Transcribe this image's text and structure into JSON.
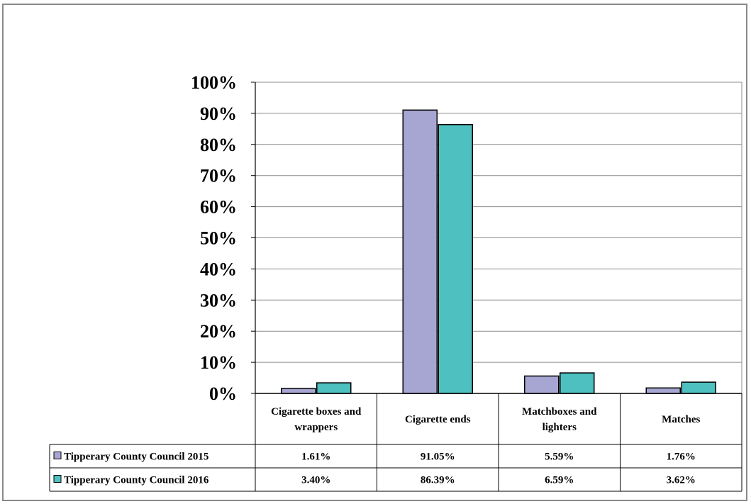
{
  "chart_data": {
    "type": "bar",
    "title": "",
    "xlabel": "",
    "ylabel": "",
    "ylim": [
      0,
      100
    ],
    "ytick_labels": [
      "0%",
      "10%",
      "20%",
      "30%",
      "40%",
      "50%",
      "60%",
      "70%",
      "80%",
      "90%",
      "100%"
    ],
    "grid": true,
    "legend": "data-table",
    "categories": [
      [
        "Cigarette boxes and",
        "wrappers"
      ],
      [
        "Cigarette ends"
      ],
      [
        "Matchboxes and",
        "lighters"
      ],
      [
        "Matches"
      ]
    ],
    "series": [
      {
        "name": "Tipperary County Council 2015",
        "color": "#a7a6d3",
        "values": [
          1.61,
          91.05,
          5.59,
          1.76
        ],
        "labels": [
          "1.61%",
          "91.05%",
          "5.59%",
          "1.76%"
        ]
      },
      {
        "name": "Tipperary County Council 2016",
        "color": "#4ec0c0",
        "values": [
          3.4,
          86.39,
          6.59,
          3.62
        ],
        "labels": [
          "3.40%",
          "86.39%",
          "6.59%",
          "3.62%"
        ]
      }
    ]
  }
}
